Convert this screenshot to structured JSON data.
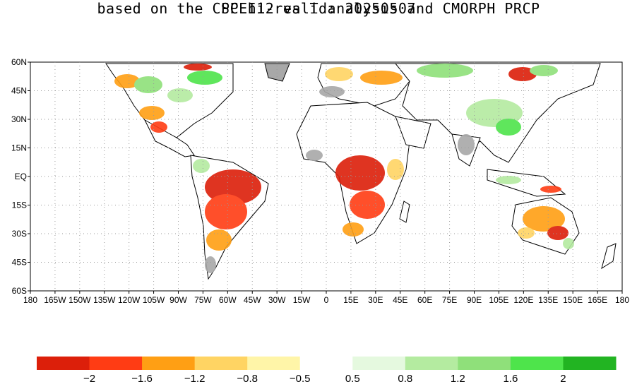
{
  "title": "SPEI12   valid: 20250507",
  "subtitle": "based on the CPC hi-res T analysis and CMORPH PRCP",
  "lat_labels": [
    "60N",
    "45N",
    "30N",
    "15N",
    "EQ",
    "15S",
    "30S",
    "45S",
    "60S"
  ],
  "lon_labels": [
    "180",
    "165W",
    "150W",
    "135W",
    "120W",
    "105W",
    "90W",
    "75W",
    "60W",
    "45W",
    "30W",
    "15W",
    "0",
    "15E",
    "30E",
    "45E",
    "60E",
    "75E",
    "90E",
    "105E",
    "120E",
    "135E",
    "150E",
    "165E",
    "180"
  ],
  "colorbar": {
    "colors": [
      "#dc1f0a",
      "#ff3c14",
      "#ff9f14",
      "#ffd463",
      "#fff5a8",
      "#ffffff",
      "#e5f9df",
      "#b4eba0",
      "#8fe07a",
      "#4ee44b",
      "#22b422"
    ],
    "labels": [
      "-2",
      "-1.6",
      "-1.2",
      "-0.8",
      "-0.5",
      "0.5",
      "0.8",
      "1.2",
      "1.6",
      "2"
    ]
  },
  "map_colors": {
    "land": "#ffffff",
    "no_data": "#a8a8a8",
    "coast": "#000000",
    "grid": "#9a9a9a"
  }
}
